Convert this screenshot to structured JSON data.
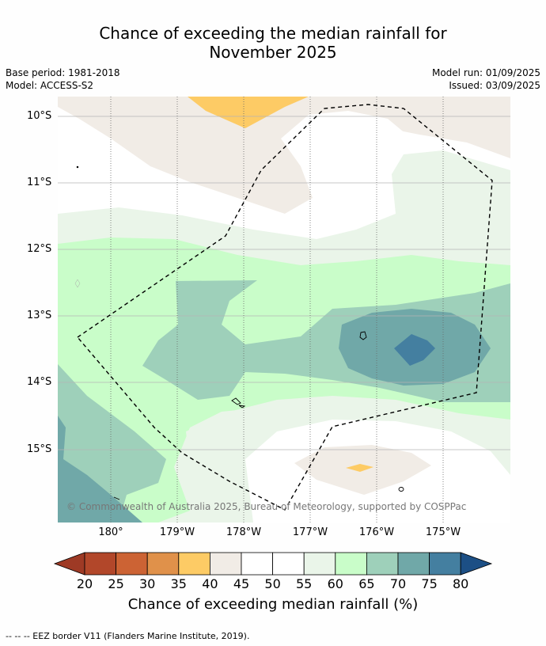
{
  "title_line1": "Chance of exceeding the median rainfall for",
  "title_line2": "November 2025",
  "base_period": "Base period: 1981-2018",
  "model": "Model: ACCESS-S2",
  "model_run": "Model run: 01/09/2025",
  "issued": "Issued: 03/09/2025",
  "lat_labels": [
    "10°S",
    "11°S",
    "12°S",
    "13°S",
    "14°S",
    "15°S"
  ],
  "lon_labels": [
    "180°",
    "179°W",
    "178°W",
    "177°W",
    "176°W",
    "175°W"
  ],
  "copyright": "© Commonwealth of Australia 2025, Bureau of Meteorology, supported by COSPPac",
  "colorbar": {
    "title": "Chance of exceeding median rainfall (%)",
    "ticks": [
      "20",
      "25",
      "30",
      "35",
      "40",
      "45",
      "50",
      "55",
      "60",
      "65",
      "70",
      "75",
      "80"
    ],
    "colors": [
      "#b2472a",
      "#cc6334",
      "#e0914a",
      "#fdcb65",
      "#f1ece6",
      "#ffffff",
      "#ffffff",
      "#eaf5e9",
      "#c9fdc9",
      "#9ed0ba",
      "#70a8a8",
      "#447fa0"
    ],
    "low_color": "#9e3a25",
    "high_color": "#1c4f85"
  },
  "footnote": "--  --  -- EEZ border V11 (Flanders Marine Institute, 2019)."
}
